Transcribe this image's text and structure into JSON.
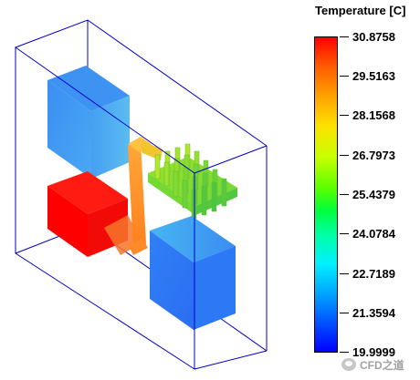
{
  "legend": {
    "title": "Temperature [C]",
    "ticks": [
      "30.8758",
      "29.5163",
      "28.1568",
      "26.7973",
      "25.4379",
      "24.0784",
      "22.7189",
      "21.3594",
      "19.9999"
    ],
    "min": 19.9999,
    "max": 30.8758
  },
  "scene": {
    "block_top_left_color": "#3a8cf0",
    "block_bottom_left_color": "#ff0a0a",
    "block_bottom_right_color": "#2f7ef5",
    "heatpipe_color": "#ff9d2a",
    "heatsink_color": "#8ee62e",
    "enclosure_edge_color": "#0000cc"
  },
  "watermark": {
    "text": "CFD之道"
  }
}
